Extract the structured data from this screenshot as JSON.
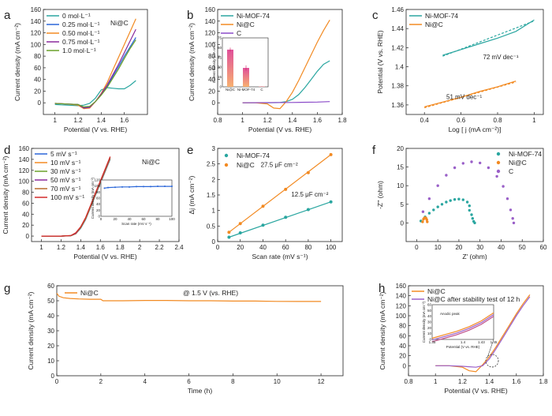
{
  "chart_data": [
    {
      "panel": "a",
      "type": "line",
      "xlabel": "Potential (V vs. RHE)",
      "ylabel": "Current density (mA cm⁻²)",
      "xlim": [
        0.9,
        1.8
      ],
      "ylim": [
        -20,
        160
      ],
      "xticks": [
        1.0,
        1.2,
        1.4,
        1.6
      ],
      "yticks": [
        0,
        20,
        40,
        60,
        80,
        100,
        120,
        140,
        160
      ],
      "annotation": "Ni@C",
      "legend_position": "top-left",
      "series": [
        {
          "name": "0 mol·L⁻¹",
          "color": "#2aa6a0",
          "x": [
            1.0,
            1.1,
            1.2,
            1.25,
            1.3,
            1.35,
            1.4,
            1.45,
            1.5,
            1.55,
            1.6,
            1.65,
            1.7
          ],
          "y": [
            -3,
            -4,
            -5,
            -4,
            -1,
            8,
            22,
            26,
            25,
            24,
            24,
            30,
            38
          ]
        },
        {
          "name": "0.25 mol·L⁻¹",
          "color": "#2a66d8",
          "x": [
            1.0,
            1.1,
            1.2,
            1.25,
            1.3,
            1.35,
            1.4,
            1.45,
            1.5,
            1.55,
            1.6,
            1.65,
            1.7
          ],
          "y": [
            -1,
            -2,
            -3,
            -8,
            -7,
            2,
            14,
            28,
            45,
            62,
            80,
            96,
            112
          ]
        },
        {
          "name": "0.50 mol·L⁻¹",
          "color": "#f28a22",
          "x": [
            1.0,
            1.1,
            1.2,
            1.25,
            1.3,
            1.35,
            1.4,
            1.45,
            1.5,
            1.55,
            1.6,
            1.65,
            1.7
          ],
          "y": [
            -1,
            -2,
            -4,
            -10,
            -9,
            2,
            16,
            34,
            56,
            78,
            100,
            122,
            144
          ]
        },
        {
          "name": "0.75 mol·L⁻¹",
          "color": "#8a2a9c",
          "x": [
            1.0,
            1.1,
            1.2,
            1.25,
            1.3,
            1.35,
            1.4,
            1.45,
            1.5,
            1.55,
            1.6,
            1.65,
            1.7
          ],
          "y": [
            -1,
            -2,
            -3,
            -9,
            -8,
            2,
            15,
            30,
            48,
            66,
            86,
            106,
            126
          ]
        },
        {
          "name": "1.0 mol·L⁻¹",
          "color": "#6aa02a",
          "x": [
            1.0,
            1.1,
            1.2,
            1.25,
            1.3,
            1.35,
            1.4,
            1.45,
            1.5,
            1.55,
            1.6,
            1.65,
            1.7
          ],
          "y": [
            -1,
            -2,
            -3,
            -7,
            -6,
            2,
            13,
            26,
            42,
            58,
            76,
            93,
            108
          ]
        }
      ]
    },
    {
      "panel": "b",
      "type": "line",
      "xlabel": "Potential (V vs. RHE)",
      "ylabel": "Current density (mA cm⁻²)",
      "xlim": [
        0.8,
        1.8
      ],
      "ylim": [
        -20,
        160
      ],
      "xticks": [
        0.8,
        1.0,
        1.2,
        1.4,
        1.6,
        1.8
      ],
      "yticks": [
        0,
        20,
        40,
        60,
        80,
        100,
        120,
        140,
        160
      ],
      "legend_position": "top-left",
      "series": [
        {
          "name": "Ni-MOF-74",
          "color": "#2aa6a0",
          "x": [
            1.0,
            1.2,
            1.3,
            1.35,
            1.4,
            1.45,
            1.5,
            1.55,
            1.6,
            1.65,
            1.7
          ],
          "y": [
            0,
            0,
            0.5,
            2,
            6,
            14,
            26,
            40,
            54,
            66,
            72
          ]
        },
        {
          "name": "Ni@C",
          "color": "#f28a22",
          "x": [
            1.0,
            1.1,
            1.2,
            1.25,
            1.3,
            1.35,
            1.4,
            1.45,
            1.5,
            1.55,
            1.6,
            1.65,
            1.7
          ],
          "y": [
            0,
            0,
            -2,
            -9,
            -10,
            2,
            18,
            38,
            60,
            82,
            104,
            124,
            142
          ]
        },
        {
          "name": "C",
          "color": "#8a4ac8",
          "x": [
            1.0,
            1.2,
            1.4,
            1.6,
            1.7
          ],
          "y": [
            0,
            0.3,
            0.6,
            1.2,
            2
          ]
        }
      ],
      "inset": {
        "type": "bar",
        "ylabel": "Current density (mA cm⁻²)",
        "categories": [
          "Ni@C",
          "Ni-MOF-74",
          "C"
        ],
        "values": [
          57,
          29,
          0.6
        ],
        "errors": [
          3,
          4,
          0.2
        ],
        "ylim": [
          0,
          75
        ],
        "yticks": [
          0,
          15,
          30,
          45,
          60,
          75
        ]
      }
    },
    {
      "panel": "c",
      "type": "line",
      "xlabel": "Log [ j (mA cm⁻²)]",
      "ylabel": "Potential (V vs. RHE)",
      "xlim": [
        0.3,
        1.05
      ],
      "ylim": [
        1.35,
        1.46
      ],
      "xticks": [
        0.4,
        0.6,
        0.8,
        1.0
      ],
      "yticks": [
        1.36,
        1.38,
        1.4,
        1.42,
        1.44,
        1.46
      ],
      "legend_position": "top-left",
      "series": [
        {
          "name": "Ni-MOF-74",
          "color": "#2aa6a0",
          "x": [
            0.5,
            0.6,
            0.7,
            0.8,
            0.9,
            1.0
          ],
          "y": [
            1.412,
            1.418,
            1.424,
            1.43,
            1.437,
            1.449
          ]
        },
        {
          "name": "Ni@C",
          "color": "#f28a22",
          "x": [
            0.4,
            0.5,
            0.6,
            0.7,
            0.8,
            0.9
          ],
          "y": [
            1.358,
            1.363,
            1.368,
            1.374,
            1.379,
            1.385
          ]
        }
      ],
      "annotations": [
        "72 mV dec⁻¹",
        "51 mV dec⁻¹"
      ]
    },
    {
      "panel": "d",
      "type": "line",
      "xlabel": "Potential (V vs. RHE)",
      "ylabel": "Current density (mA cm⁻²)",
      "xlim": [
        0.9,
        2.4
      ],
      "ylim": [
        -10,
        160
      ],
      "xticks": [
        1.0,
        1.2,
        1.4,
        1.6,
        1.8,
        2.0,
        2.2,
        2.4
      ],
      "yticks": [
        0,
        20,
        40,
        60,
        80,
        100,
        120,
        140,
        160
      ],
      "annotation": "Ni@C",
      "legend_position": "top-left",
      "series": [
        {
          "name": "5 mV s⁻¹",
          "color": "#2a66d8",
          "x": [
            1.0,
            1.2,
            1.3,
            1.35,
            1.4,
            1.45,
            1.5,
            1.55,
            1.6,
            1.65,
            1.7
          ],
          "y": [
            0,
            0,
            0.5,
            4,
            14,
            30,
            52,
            74,
            96,
            118,
            140
          ]
        },
        {
          "name": "10 mV s⁻¹",
          "color": "#f28a22",
          "x": [
            1.0,
            1.2,
            1.3,
            1.35,
            1.4,
            1.45,
            1.5,
            1.55,
            1.6,
            1.65,
            1.7
          ],
          "y": [
            0,
            0,
            0.6,
            4,
            15,
            31,
            53,
            75,
            97,
            119,
            141
          ]
        },
        {
          "name": "30 mV s⁻¹",
          "color": "#6aa02a",
          "x": [
            1.0,
            1.2,
            1.3,
            1.35,
            1.4,
            1.45,
            1.5,
            1.55,
            1.6,
            1.65,
            1.7
          ],
          "y": [
            0,
            0,
            0.7,
            5,
            15,
            32,
            54,
            76,
            98,
            120,
            142
          ]
        },
        {
          "name": "50 mV s⁻¹",
          "color": "#8a2a9c",
          "x": [
            1.0,
            1.2,
            1.3,
            1.35,
            1.4,
            1.45,
            1.5,
            1.55,
            1.6,
            1.65,
            1.7
          ],
          "y": [
            0,
            0,
            0.8,
            5,
            16,
            33,
            55,
            77,
            99,
            121,
            143
          ]
        },
        {
          "name": "70 mV s⁻¹",
          "color": "#b86a2a",
          "x": [
            1.0,
            1.2,
            1.3,
            1.35,
            1.4,
            1.45,
            1.5,
            1.55,
            1.6,
            1.65,
            1.7
          ],
          "y": [
            0,
            0,
            0.9,
            6,
            16,
            33,
            55,
            78,
            100,
            122,
            144
          ]
        },
        {
          "name": "100 mV s⁻¹",
          "color": "#d22a2a",
          "x": [
            1.0,
            1.2,
            1.3,
            1.35,
            1.4,
            1.45,
            1.5,
            1.55,
            1.6,
            1.65,
            1.7
          ],
          "y": [
            0,
            0,
            1,
            6,
            17,
            34,
            56,
            79,
            101,
            123,
            145
          ]
        }
      ],
      "inset": {
        "type": "line",
        "xlabel": "Scan rate (mV s⁻¹)",
        "ylabel": "Current density (mA cm⁻²)",
        "xlim": [
          0,
          100
        ],
        "ylim": [
          0,
          120
        ],
        "xticks": [
          0,
          20,
          40,
          60,
          80,
          100
        ],
        "yticks": [
          0,
          20,
          40,
          60,
          80,
          100,
          120
        ],
        "x": [
          5,
          10,
          20,
          30,
          40,
          50,
          60,
          70,
          80,
          90,
          100
        ],
        "y": [
          93,
          95,
          96,
          97,
          97,
          98,
          98,
          98,
          99,
          99,
          99
        ]
      }
    },
    {
      "panel": "e",
      "type": "scatter",
      "xlabel": "Scan rate (mV s⁻¹)",
      "ylabel": "Δj (mA cm⁻²)",
      "xlim": [
        0,
        110
      ],
      "ylim": [
        0,
        3.0
      ],
      "xticks": [
        0,
        20,
        40,
        60,
        80,
        100
      ],
      "yticks": [
        0.0,
        0.5,
        1.0,
        1.5,
        2.0,
        2.5,
        3.0
      ],
      "legend_position": "top-left",
      "series": [
        {
          "name": "Ni-MOF-74",
          "color": "#2aa6a0",
          "x": [
            10,
            20,
            40,
            60,
            80,
            100
          ],
          "y": [
            0.14,
            0.28,
            0.53,
            0.78,
            1.03,
            1.28
          ],
          "fit": true
        },
        {
          "name": "Ni@C",
          "color": "#f28a22",
          "x": [
            10,
            20,
            40,
            60,
            80,
            100
          ],
          "y": [
            0.3,
            0.58,
            1.14,
            1.68,
            2.22,
            2.8
          ],
          "fit": true
        }
      ],
      "annotations": [
        "27.5 μF cm⁻²",
        "12.5 μF cm⁻²"
      ]
    },
    {
      "panel": "f",
      "type": "scatter",
      "xlabel": "Z' (ohm)",
      "ylabel": "-Z'' (ohm)",
      "xlim": [
        -5,
        60
      ],
      "ylim": [
        -5,
        20
      ],
      "xticks": [
        0,
        10,
        20,
        30,
        40,
        50,
        60
      ],
      "yticks": [
        0,
        5,
        10,
        15,
        20
      ],
      "legend_position": "top-right",
      "series": [
        {
          "name": "Ni-MOF-74",
          "color": "#2aa6a0",
          "x": [
            2,
            4,
            6,
            8,
            10,
            12,
            14,
            16,
            18,
            20,
            22,
            24,
            25,
            25,
            26,
            26.5,
            27,
            27.5
          ],
          "y": [
            0.5,
            1.6,
            2.6,
            3.5,
            4.3,
            5.0,
            5.6,
            6.0,
            6.3,
            6.4,
            6.2,
            5.6,
            4.6,
            3.4,
            2.2,
            1.2,
            0.4,
            0
          ]
        },
        {
          "name": "Ni@C",
          "color": "#f28a22",
          "x": [
            2.8,
            3.2,
            3.6,
            4.0,
            4.4,
            4.8,
            5.0
          ],
          "y": [
            0.3,
            1.0,
            1.3,
            1.4,
            1.3,
            0.9,
            0.3
          ]
        },
        {
          "name": "C",
          "color": "#9a60c8",
          "x": [
            3,
            6,
            10,
            14,
            18,
            22,
            26,
            30,
            34,
            38,
            41,
            43,
            44.5,
            45.5,
            46
          ],
          "y": [
            3.0,
            6.5,
            10.0,
            12.8,
            14.8,
            16.0,
            16.4,
            16.1,
            14.8,
            12.5,
            9.8,
            6.5,
            3.5,
            1.2,
            0
          ]
        }
      ]
    },
    {
      "panel": "g",
      "type": "line",
      "xlabel": "Time (h)",
      "ylabel": "Current density (mA cm⁻²)",
      "xlim": [
        0,
        13
      ],
      "ylim": [
        0,
        60
      ],
      "xticks": [
        0,
        2,
        4,
        6,
        8,
        10,
        12
      ],
      "yticks": [
        0,
        10,
        20,
        30,
        40,
        50,
        60
      ],
      "legend_position": "top-left",
      "annotation": "@ 1.5 V (vs. RHE)",
      "series": [
        {
          "name": "Ni@C",
          "color": "#f28a22",
          "x": [
            0,
            0.1,
            0.3,
            0.6,
            1,
            1.5,
            2,
            2.1,
            3,
            4,
            5,
            6,
            7,
            8,
            9,
            10,
            11,
            12
          ],
          "y": [
            55,
            53,
            52,
            51.5,
            51.2,
            51,
            51,
            50,
            50,
            50.2,
            50.2,
            50,
            50,
            49.8,
            49.8,
            49.6,
            49.5,
            49.5
          ]
        }
      ]
    },
    {
      "panel": "h",
      "type": "line",
      "xlabel": "Potential (V vs. RHE)",
      "ylabel": "Current density (mA cm⁻²)",
      "xlim": [
        0.8,
        1.8
      ],
      "ylim": [
        -20,
        160
      ],
      "xticks": [
        0.8,
        1.0,
        1.2,
        1.4,
        1.6,
        1.8
      ],
      "yticks": [
        0,
        20,
        40,
        60,
        80,
        100,
        120,
        140,
        160
      ],
      "legend_position": "top-left",
      "series": [
        {
          "name": "Ni@C",
          "color": "#f28a22",
          "x": [
            1.0,
            1.1,
            1.2,
            1.25,
            1.3,
            1.35,
            1.4,
            1.45,
            1.5,
            1.55,
            1.6,
            1.65,
            1.7
          ],
          "y": [
            0,
            0,
            -3,
            -10,
            -12,
            2,
            18,
            38,
            60,
            82,
            104,
            124,
            142
          ]
        },
        {
          "name": "Ni@C after stability test of 12 h",
          "color": "#9a60c8",
          "x": [
            1.0,
            1.1,
            1.2,
            1.25,
            1.3,
            1.35,
            1.4,
            1.45,
            1.5,
            1.55,
            1.6,
            1.65,
            1.7
          ],
          "y": [
            0,
            0,
            -1,
            -2,
            -3,
            0,
            14,
            34,
            56,
            78,
            100,
            120,
            138
          ]
        }
      ],
      "inset": {
        "type": "line",
        "xlabel": "Potential (V vs. RHE)",
        "ylabel": "Current density (mA cm⁻²)",
        "xlim": [
          1.35,
          1.45
        ],
        "ylim": [
          0,
          60
        ],
        "xticks": [
          1.35,
          1.4,
          1.43,
          1.45
        ],
        "yticks": [
          0,
          10,
          20,
          30,
          40,
          50,
          60
        ],
        "annotation": "Anodic peak",
        "x": [
          1.35,
          1.37,
          1.39,
          1.41,
          1.43,
          1.45
        ],
        "y": [
          2,
          8,
          14,
          22,
          32,
          46
        ]
      }
    }
  ]
}
